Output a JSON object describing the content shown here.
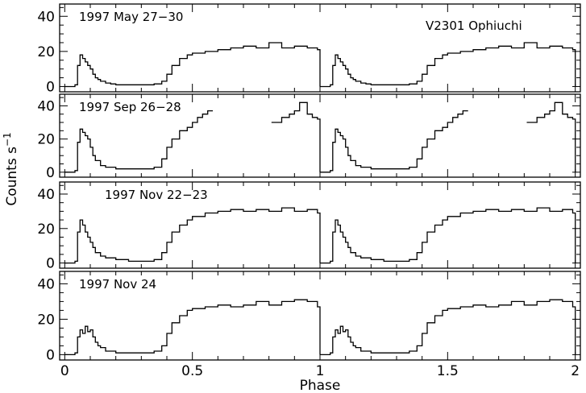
{
  "chart_data": {
    "type": "line",
    "line_style": "step",
    "shared_x_axis": true,
    "xlabel": "Phase",
    "ylabel": "Counts s",
    "ylabel_superscript": "−1",
    "xlim": [
      -0.02,
      2.02
    ],
    "ylim": [
      -3,
      47
    ],
    "x_ticks": [
      0,
      0.5,
      1,
      1.5,
      2
    ],
    "x_tick_labels": [
      "0",
      "0.5",
      "1",
      "1.5",
      "2"
    ],
    "y_ticks": [
      0,
      20,
      40
    ],
    "y_tick_labels": [
      "0",
      "20",
      "40"
    ],
    "grid": false,
    "annotation": "V2301 Ophiuchi",
    "panels": [
      {
        "label": "1997 May 27−30",
        "label_position": "top-left",
        "x": [
          0.0,
          0.02,
          0.04,
          0.05,
          0.06,
          0.07,
          0.08,
          0.09,
          0.1,
          0.11,
          0.12,
          0.13,
          0.14,
          0.16,
          0.18,
          0.2,
          0.25,
          0.3,
          0.35,
          0.38,
          0.4,
          0.42,
          0.45,
          0.48,
          0.5,
          0.55,
          0.6,
          0.65,
          0.7,
          0.75,
          0.8,
          0.85,
          0.9,
          0.95,
          0.99
        ],
        "y": [
          0,
          0,
          1,
          12,
          18,
          16,
          14,
          12,
          10,
          7,
          5,
          4,
          3,
          2,
          1.5,
          1,
          1,
          1,
          1.5,
          3,
          7,
          12,
          16,
          18,
          19,
          20,
          21,
          22,
          23,
          22,
          25,
          22,
          23,
          22,
          21
        ],
        "gaps": []
      },
      {
        "label": "1997 Sep 26−28",
        "label_position": "top-left",
        "x": [
          0.0,
          0.02,
          0.04,
          0.05,
          0.06,
          0.07,
          0.08,
          0.09,
          0.1,
          0.11,
          0.12,
          0.14,
          0.16,
          0.2,
          0.25,
          0.3,
          0.35,
          0.38,
          0.4,
          0.42,
          0.45,
          0.48,
          0.5,
          0.52,
          0.54,
          0.56,
          0.58,
          0.81,
          0.85,
          0.88,
          0.9,
          0.92,
          0.95,
          0.97,
          0.99
        ],
        "y": [
          0,
          0,
          1,
          18,
          26,
          24,
          22,
          20,
          15,
          10,
          7,
          4,
          3,
          2,
          2,
          2,
          3,
          8,
          15,
          20,
          25,
          27,
          30,
          33,
          35,
          37,
          38,
          30,
          33,
          35,
          37,
          42,
          35,
          33,
          32
        ],
        "gaps": [
          [
            0.585,
            0.805
          ]
        ]
      },
      {
        "label": "1997 Nov 22−23",
        "label_position": "top-center",
        "x": [
          0.0,
          0.02,
          0.04,
          0.05,
          0.06,
          0.07,
          0.08,
          0.09,
          0.1,
          0.11,
          0.12,
          0.14,
          0.16,
          0.2,
          0.25,
          0.3,
          0.35,
          0.38,
          0.4,
          0.42,
          0.45,
          0.48,
          0.5,
          0.55,
          0.6,
          0.65,
          0.7,
          0.75,
          0.8,
          0.85,
          0.9,
          0.95,
          0.99
        ],
        "y": [
          0,
          0,
          1,
          18,
          25,
          22,
          18,
          15,
          12,
          9,
          6,
          4,
          3,
          2,
          1,
          1,
          2,
          6,
          12,
          18,
          22,
          25,
          27,
          29,
          30,
          31,
          30,
          31,
          30,
          32,
          30,
          31,
          29
        ],
        "gaps": []
      },
      {
        "label": "1997 Nov 24",
        "label_position": "top-left",
        "x": [
          0.0,
          0.02,
          0.04,
          0.05,
          0.06,
          0.07,
          0.08,
          0.09,
          0.1,
          0.11,
          0.12,
          0.13,
          0.14,
          0.16,
          0.2,
          0.25,
          0.3,
          0.35,
          0.38,
          0.4,
          0.42,
          0.45,
          0.48,
          0.5,
          0.55,
          0.6,
          0.65,
          0.7,
          0.75,
          0.8,
          0.85,
          0.9,
          0.95,
          0.99
        ],
        "y": [
          0,
          0,
          1,
          10,
          14,
          12,
          16,
          13,
          14,
          10,
          7,
          5,
          4,
          2,
          1,
          1,
          1,
          2,
          5,
          12,
          18,
          22,
          25,
          26,
          27,
          28,
          27,
          28,
          30,
          28,
          30,
          31,
          30,
          27
        ],
        "gaps": []
      }
    ],
    "note": "light curve is drawn twice: phase 0–1 repeated over phase 1–2"
  }
}
